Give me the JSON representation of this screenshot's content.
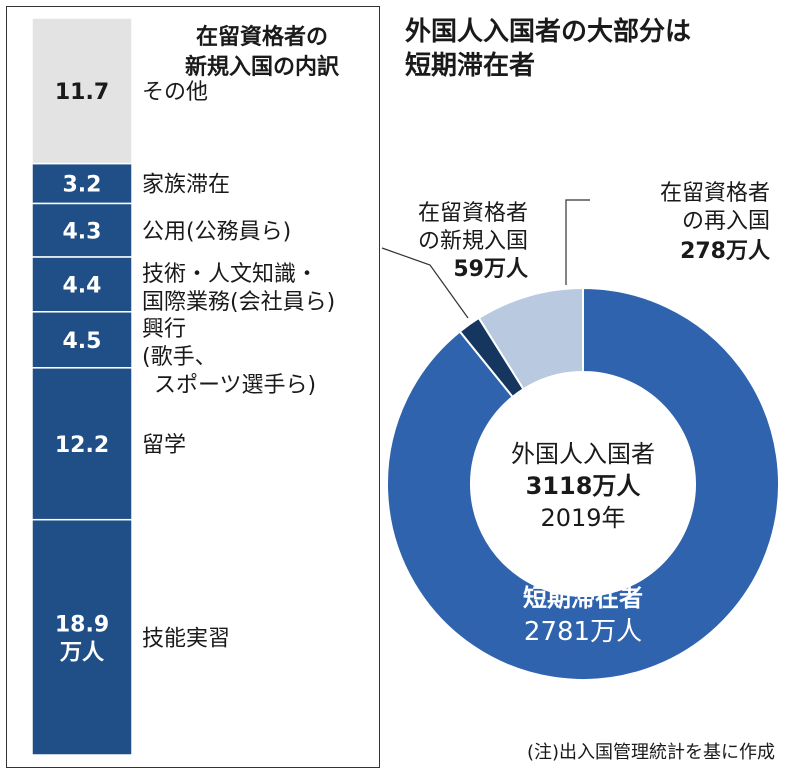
{
  "breakdown": {
    "title_lines": [
      "在留資格者の",
      "新規入国の内訳"
    ],
    "segments": [
      {
        "value": 11.7,
        "value_text": "11.7",
        "label_lines": [
          "その他"
        ],
        "color": "#e3e3e3",
        "text_color": "#1a1a1a"
      },
      {
        "value": 3.2,
        "value_text": "3.2",
        "label_lines": [
          "家族滞在"
        ],
        "color": "#1f4f86",
        "text_color": "#ffffff"
      },
      {
        "value": 4.3,
        "value_text": "4.3",
        "label_lines": [
          "公用(公務員ら)"
        ],
        "color": "#1f4f86",
        "text_color": "#ffffff"
      },
      {
        "value": 4.4,
        "value_text": "4.4",
        "label_lines": [
          "技術・人文知識・",
          "国際業務(会社員ら)"
        ],
        "color": "#1f4f86",
        "text_color": "#ffffff"
      },
      {
        "value": 4.5,
        "value_text": "4.5",
        "label_lines": [
          "興行",
          "(歌手、",
          "スポーツ選手ら)"
        ],
        "color": "#1f4f86",
        "text_color": "#ffffff"
      },
      {
        "value": 12.2,
        "value_text": "12.2",
        "label_lines": [
          "留学"
        ],
        "color": "#1f4f86",
        "text_color": "#ffffff"
      },
      {
        "value": 18.9,
        "value_text": "18.9",
        "unit_text": "万人",
        "label_lines": [
          "技能実習"
        ],
        "color": "#1f4f86",
        "text_color": "#ffffff"
      }
    ]
  },
  "chart_data": [
    {
      "type": "bar",
      "orientation": "stacked-vertical",
      "title": "在留資格者の新規入国の内訳",
      "unit": "万人",
      "categories": [
        "その他",
        "家族滞在",
        "公用(公務員ら)",
        "技術・人文知識・国際業務(会社員ら)",
        "興行(歌手、スポーツ選手ら)",
        "留学",
        "技能実習"
      ],
      "values": [
        11.7,
        3.2,
        4.3,
        4.4,
        4.5,
        12.2,
        18.9
      ]
    },
    {
      "type": "pie",
      "variant": "donut",
      "title": "外国人入国者の大部分は短期滞在者",
      "total": 3118,
      "total_label": "外国人入国者",
      "unit": "万人",
      "year": "2019年",
      "slices": [
        {
          "name": "短期滞在者",
          "value": 2781,
          "color": "#2f63ad"
        },
        {
          "name": "在留資格者の新規入国",
          "value": 59,
          "color": "#15365e"
        },
        {
          "name": "在留資格者の再入国",
          "value": 278,
          "color": "#b9c9e0"
        }
      ]
    }
  ],
  "donut": {
    "title_lines": [
      "外国人入国者の大部分は",
      "短期滞在者"
    ],
    "center": {
      "line1": "外国人入国者",
      "line2": "3118万人",
      "line3": "2019年"
    },
    "inner_label": {
      "line1": "短期滞在者",
      "line2": "2781万人"
    },
    "callout_new": {
      "line1": "在留資格者",
      "line2": "の新規入国",
      "line3": "59万人"
    },
    "callout_re": {
      "line1": "在留資格者",
      "line2": "の再入国",
      "line3": "278万人"
    }
  },
  "note": "(注)出入国管理統計を基に作成"
}
